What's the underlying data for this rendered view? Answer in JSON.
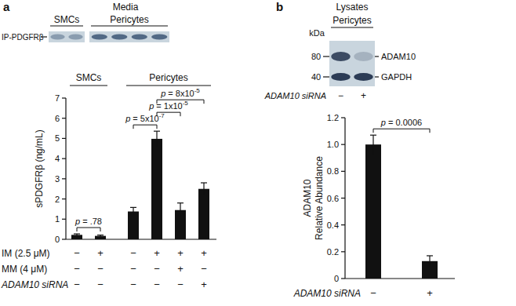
{
  "chart_data": [
    {
      "type": "bar",
      "panel_label": "a",
      "blot": {
        "title": "Media",
        "groups": [
          {
            "label": "SMCs",
            "lanes": 2
          },
          {
            "label": "Pericytes",
            "lanes": 4
          }
        ],
        "band_label": "IP-PDGFRβ"
      },
      "y_label": "sPDGFRβ (ng/mL)",
      "categories": [
        null,
        null,
        null,
        null,
        null,
        null
      ],
      "groups": [
        {
          "label": "SMCs",
          "from": 0,
          "to": 1
        },
        {
          "label": "Pericytes",
          "from": 2,
          "to": 5
        }
      ],
      "values": [
        0.22,
        0.17,
        1.38,
        4.98,
        1.45,
        2.5
      ],
      "errors": [
        0.05,
        0.04,
        0.2,
        0.38,
        0.35,
        0.3
      ],
      "color": "#111111",
      "ylim": [
        0,
        7
      ],
      "yticks": [
        0,
        1,
        2,
        3,
        4,
        5,
        6,
        7
      ],
      "conditions": [
        {
          "label": "IM (2.5 μM)",
          "marks": [
            "−",
            "+",
            "−",
            "+",
            "+",
            "+"
          ]
        },
        {
          "label": "MM (4 μM)",
          "marks": [
            "−",
            "−",
            "−",
            "−",
            "+",
            "−"
          ]
        },
        {
          "label": "ADAM10 siRNA",
          "marks": [
            "−",
            "−",
            "−",
            "−",
            "−",
            "+"
          ]
        }
      ],
      "annotations": [
        {
          "text": "p = .78",
          "from": 0,
          "to": 1
        },
        {
          "text": "p = 5x10",
          "sup": "-7",
          "from": 2,
          "to": 3
        },
        {
          "text": "p = 1x10",
          "sup": "-5",
          "from": 3,
          "to": 4
        },
        {
          "text": "p = 8x10",
          "sup": "-5",
          "from": 3,
          "to": 5
        }
      ]
    },
    {
      "type": "bar",
      "panel_label": "b",
      "blot": {
        "title": "Lysates",
        "groups": [
          {
            "label": "Pericytes",
            "lanes": 2
          }
        ],
        "unit_label": "kDa",
        "markers": [
          {
            "label": "80",
            "band": "ADAM10"
          },
          {
            "label": "40",
            "band": "GAPDH"
          }
        ],
        "treatment": {
          "label": "ADAM10 siRNA",
          "marks": [
            "−",
            "+"
          ]
        }
      },
      "y_label": [
        "ADAM10",
        "Relative Abundance"
      ],
      "categories": [
        null,
        null
      ],
      "values": [
        1.0,
        0.13
      ],
      "errors": [
        0.07,
        0.04
      ],
      "color": "#111111",
      "ylim": [
        0,
        1.2
      ],
      "yticks": [
        0,
        0.2,
        0.4,
        0.6,
        0.8,
        {
          "value": 1,
          "label": "1.0"
        },
        1.2
      ],
      "conditions": [
        {
          "label": "ADAM10 siRNA",
          "marks": [
            "−",
            "+"
          ]
        }
      ],
      "annotations": [
        {
          "text": "p = 0.0006",
          "from": 0,
          "to": 1
        }
      ]
    }
  ]
}
